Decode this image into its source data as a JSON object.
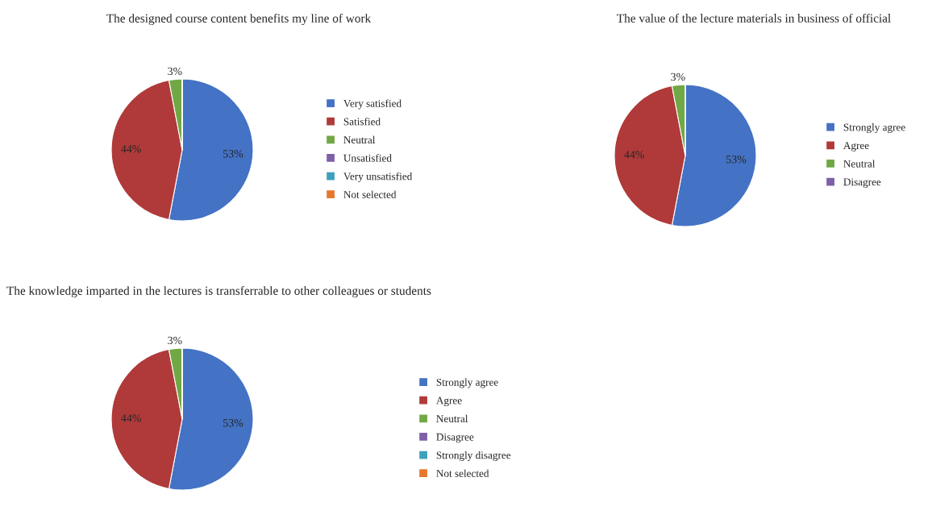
{
  "chart_data": [
    {
      "type": "pie",
      "title": "The designed course content benefits my line of work",
      "categories": [
        "Very satisfied",
        "Satisfied",
        "Neutral",
        "Unsatisfied",
        "Very unsatisfied",
        "Not selected"
      ],
      "values": [
        53,
        44,
        3,
        0,
        0,
        0
      ],
      "value_labels": [
        "53%",
        "44%",
        "3%",
        null,
        null,
        null
      ],
      "colors": [
        "#4472c4",
        "#b03a3a",
        "#70a845",
        "#7f5fa8",
        "#3fa0be",
        "#e8772e"
      ],
      "legend": "right"
    },
    {
      "type": "pie",
      "title": "The value of the lecture materials in business of official",
      "categories": [
        "Strongly agree",
        "Agree",
        "Neutral",
        "Disagree"
      ],
      "values": [
        53,
        44,
        3,
        0
      ],
      "value_labels": [
        "53%",
        "44%",
        "3%",
        null
      ],
      "colors": [
        "#4472c4",
        "#b03a3a",
        "#70a845",
        "#7f5fa8"
      ],
      "legend": "right"
    },
    {
      "type": "pie",
      "title": "The knowledge imparted in the lectures is transferrable to other colleagues or students",
      "categories": [
        "Strongly agree",
        "Agree",
        "Neutral",
        "Disagree",
        "Strongly disagree",
        "Not selected"
      ],
      "values": [
        53,
        44,
        3,
        0,
        0,
        0
      ],
      "value_labels": [
        "53%",
        "44%",
        "3%",
        null,
        null,
        null
      ],
      "colors": [
        "#4472c4",
        "#b03a3a",
        "#70a845",
        "#7f5fa8",
        "#3fa0be",
        "#e8772e"
      ],
      "legend": "right"
    }
  ]
}
